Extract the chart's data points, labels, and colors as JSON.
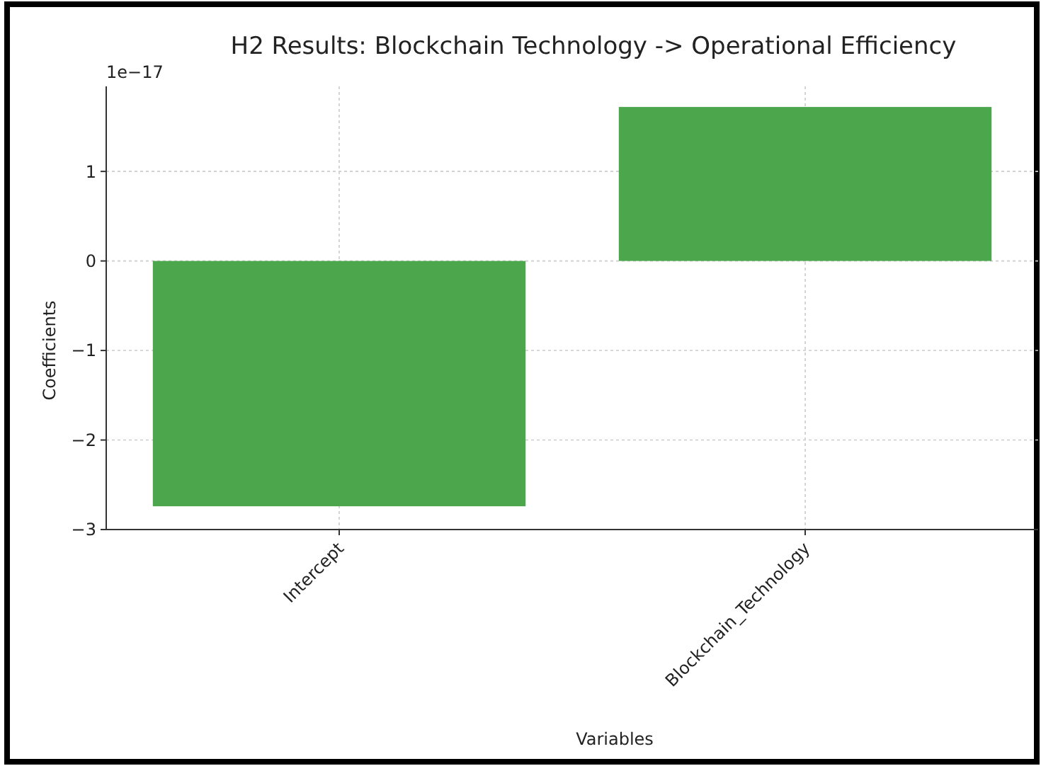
{
  "chart_data": {
    "type": "bar",
    "title": "H2 Results: Blockchain Technology -> Operational Efficiency",
    "xlabel": "Variables",
    "ylabel": "Coefficients",
    "categories": [
      "Intercept",
      "Blockchain_Technology"
    ],
    "values": [
      -2.74,
      1.72
    ],
    "color": "#4ca64c",
    "ylim": [
      -3,
      1.95
    ],
    "yticks": [
      {
        "value": -3,
        "label": "−3"
      },
      {
        "value": -2,
        "label": "−2"
      },
      {
        "value": -1,
        "label": "−1"
      },
      0,
      1
    ],
    "grid": true,
    "annotations": [
      "1e−17"
    ]
  }
}
